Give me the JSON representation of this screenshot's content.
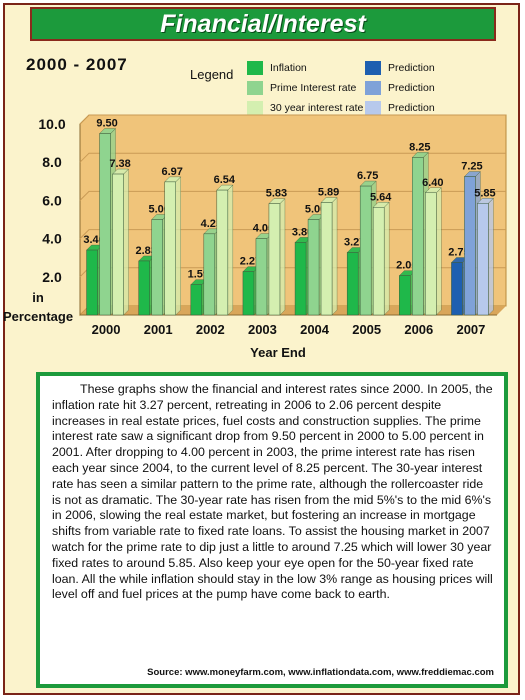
{
  "banner_title": "Financial/Interest",
  "year_range": "2000 - 2007",
  "legend": {
    "title": "Legend",
    "items": [
      {
        "label": "Inflation",
        "color": "#1fb84a"
      },
      {
        "label": "Prime Interest rate",
        "color": "#8fd48f"
      },
      {
        "label": "30 year interest rate",
        "color": "#d4efb0"
      },
      {
        "label": "Prediction",
        "color": "#1e5fb0"
      },
      {
        "label": "Prediction",
        "color": "#7fa2d8"
      },
      {
        "label": "Prediction",
        "color": "#b7c9ec"
      }
    ]
  },
  "chart_data": {
    "type": "bar",
    "categories": [
      "2000",
      "2001",
      "2002",
      "2003",
      "2004",
      "2005",
      "2006",
      "2007"
    ],
    "series": [
      {
        "name": "Inflation",
        "values": [
          3.4,
          2.83,
          1.59,
          2.27,
          3.8,
          3.27,
          2.06,
          2.75
        ]
      },
      {
        "name": "Prime Interest rate",
        "values": [
          9.5,
          5.0,
          4.25,
          4.0,
          5.0,
          6.75,
          8.25,
          7.25
        ]
      },
      {
        "name": "30 year interest rate",
        "values": [
          7.38,
          6.97,
          6.54,
          5.83,
          5.89,
          5.64,
          6.4,
          5.85
        ]
      }
    ],
    "value_labels": [
      [
        "3.40",
        "2.83",
        "1.59",
        "2.27",
        "3.80",
        "3.27",
        "2.06",
        "2.75"
      ],
      [
        "9.50",
        "5.00",
        "4.25",
        "4.00",
        "5.00",
        "6.75",
        "8.25",
        "7.25"
      ],
      [
        "7.38",
        "6.97",
        "6.54",
        "5.83",
        "5.89",
        "5.64",
        "6.40",
        "5.85"
      ]
    ],
    "colors": [
      "#1fb84a",
      "#8fd48f",
      "#d4efb0"
    ],
    "prediction_category": "2007",
    "prediction_colors": [
      "#1e5fb0",
      "#7fa2d8",
      "#b7c9ec"
    ],
    "ylabel": "in\nPercentage",
    "ylabel_lines": [
      "in",
      "Percentage"
    ],
    "xlabel": "Year End",
    "yticks": [
      "10.0",
      "8.0",
      "6.0",
      "4.0",
      "2.0"
    ],
    "ylim": [
      0,
      10
    ],
    "grid": true,
    "backdrop_color": "#f0c47a"
  },
  "description": "These graphs show the financial and interest rates since 2000. In 2005, the inflation rate hit 3.27 percent, retreating in 2006 to 2.06 percent despite increases in real estate prices, fuel costs and construction supplies. The prime interest rate saw a significant drop from 9.50 percent in 2000 to 5.00 percent in 2001. After dropping to 4.00 percent in 2003, the prime interest rate has risen each year since 2004, to the current level of 8.25 percent. The 30-year interest rate has seen a similar pattern to the prime rate, although the rollercoaster ride is not as dramatic. The 30-year rate has risen from the mid 5%'s to the mid 6%'s in 2006, slowing the real estate market, but fostering an increase in mortgage shifts from variable rate to fixed rate loans. To assist the housing market in 2007 watch for the prime rate to dip just a little to around 7.25 which will lower 30 year fixed rates to around 5.85. Also keep your eye open for the 50-year fixed rate loan. All the while inflation should stay in the low 3% range as housing prices will level off and fuel prices at the pump have come back to earth.",
  "source": "Source: www.moneyfarm.com, www.inflationdata.com, www.freddiemac.com"
}
